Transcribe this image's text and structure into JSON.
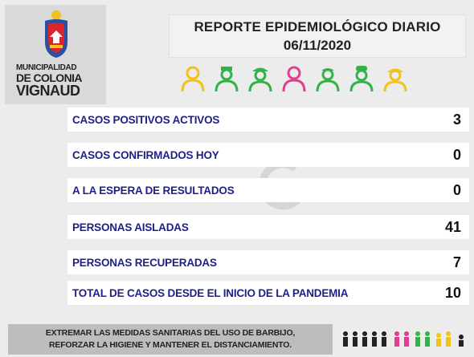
{
  "logo": {
    "line1": "MUNICIPALIDAD",
    "line2": "DE COLONIA",
    "line3": "VIGNAUD"
  },
  "header": {
    "title": "REPORTE EPIDEMIOLÓGICO DIARIO",
    "date": "06/11/2020"
  },
  "worker_icons": [
    "doctor-icon",
    "nurse-icon",
    "firefighter-icon",
    "worker-icon",
    "medic-icon",
    "chef-icon",
    "builder-icon"
  ],
  "colors": {
    "label_blue": "#1f1f8a",
    "yellow": "#f2c21a",
    "green": "#34b24a",
    "pink": "#e23d8f"
  },
  "stats": [
    {
      "label": "CASOS POSITIVOS ACTIVOS",
      "value": "3"
    },
    {
      "label": "CASOS CONFIRMADOS HOY",
      "value": "0"
    },
    {
      "label": "A LA ESPERA DE RESULTADOS",
      "value": "0"
    },
    {
      "label": "PERSONAS AISLADAS",
      "value": "41"
    },
    {
      "label": "PERSONAS RECUPERADAS",
      "value": "7"
    },
    {
      "label": "TOTAL DE CASOS DESDE EL INICIO DE LA PANDEMIA",
      "value": "10"
    }
  ],
  "footer": {
    "line1": "EXTREMAR LAS MEDIDAS SANITARIAS DEL USO DE BARBIJO,",
    "line2": "REFORZAR LA HIGIENE Y MANTENER EL DISTANCIAMIENTO."
  }
}
